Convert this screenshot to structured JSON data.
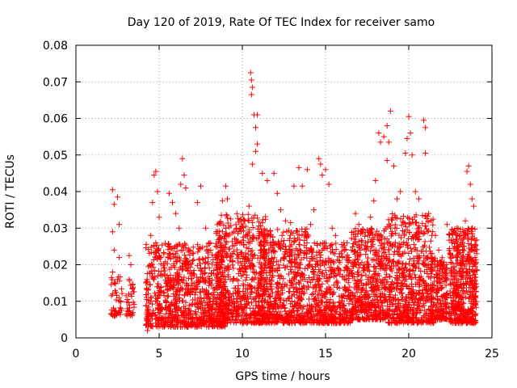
{
  "chart_data": {
    "type": "scatter",
    "title": "Day 120 of 2019, Rate Of TEC Index for receiver samo",
    "xlabel": "GPS time / hours",
    "ylabel": "ROTI / TECUs",
    "xlim": [
      0,
      25
    ],
    "ylim": [
      0,
      0.08
    ],
    "x_ticks": [
      0,
      5,
      10,
      15,
      20,
      25
    ],
    "x_tick_labels": [
      "0",
      "5",
      "10",
      "15",
      "20",
      "25"
    ],
    "y_ticks": [
      0,
      0.01,
      0.02,
      0.03,
      0.04,
      0.05,
      0.06,
      0.07,
      0.08
    ],
    "y_tick_labels": [
      "0",
      "0.01",
      "0.02",
      "0.03",
      "0.04",
      "0.05",
      "0.06",
      "0.07",
      "0.08"
    ],
    "grid": true,
    "marker": "+",
    "color": "#ff0000",
    "series": [
      {
        "name": "ROTI",
        "points": [
          [
            2.2,
            0.0405
          ],
          [
            2.3,
            0.0365
          ],
          [
            2.2,
            0.029
          ],
          [
            2.3,
            0.024
          ],
          [
            2.2,
            0.018
          ],
          [
            2.3,
            0.015
          ],
          [
            2.2,
            0.012
          ],
          [
            2.4,
            0.0075
          ],
          [
            2.5,
            0.0385
          ],
          [
            2.6,
            0.031
          ],
          [
            2.6,
            0.022
          ],
          [
            2.5,
            0.016
          ],
          [
            2.6,
            0.011
          ],
          [
            2.7,
            0.008
          ],
          [
            3.2,
            0.0225
          ],
          [
            3.3,
            0.02
          ],
          [
            3.2,
            0.016
          ],
          [
            3.3,
            0.012
          ],
          [
            3.2,
            0.009
          ],
          [
            3.3,
            0.0065
          ],
          [
            3.4,
            0.0145
          ],
          [
            3.1,
            0.0105
          ],
          [
            4.3,
            0.002
          ],
          [
            4.4,
            0.006
          ],
          [
            4.6,
            0.037
          ],
          [
            4.7,
            0.0445
          ],
          [
            4.8,
            0.0455
          ],
          [
            4.9,
            0.04
          ],
          [
            5.0,
            0.033
          ],
          [
            4.5,
            0.028
          ],
          [
            4.8,
            0.026
          ],
          [
            5.1,
            0.022
          ],
          [
            5.6,
            0.0395
          ],
          [
            5.8,
            0.037
          ],
          [
            6.0,
            0.034
          ],
          [
            6.3,
            0.042
          ],
          [
            6.4,
            0.049
          ],
          [
            6.5,
            0.0445
          ],
          [
            6.6,
            0.041
          ],
          [
            6.2,
            0.03
          ],
          [
            7.0,
            0.0035
          ],
          [
            7.3,
            0.037
          ],
          [
            7.5,
            0.0415
          ],
          [
            7.8,
            0.03
          ],
          [
            8.1,
            0.024
          ],
          [
            8.4,
            0.022
          ],
          [
            8.6,
            0.028
          ],
          [
            8.8,
            0.0375
          ],
          [
            9.0,
            0.0415
          ],
          [
            9.1,
            0.038
          ],
          [
            9.3,
            0.0325
          ],
          [
            9.5,
            0.029
          ],
          [
            9.7,
            0.026
          ],
          [
            9.9,
            0.03
          ],
          [
            10.2,
            0.0305
          ],
          [
            10.4,
            0.036
          ],
          [
            10.5,
            0.0725
          ],
          [
            10.55,
            0.0705
          ],
          [
            10.6,
            0.0685
          ],
          [
            10.55,
            0.0665
          ],
          [
            10.7,
            0.061
          ],
          [
            10.9,
            0.061
          ],
          [
            10.8,
            0.0575
          ],
          [
            10.9,
            0.053
          ],
          [
            10.8,
            0.051
          ],
          [
            10.6,
            0.0475
          ],
          [
            11.2,
            0.045
          ],
          [
            11.5,
            0.043
          ],
          [
            11.9,
            0.045
          ],
          [
            12.1,
            0.0395
          ],
          [
            12.3,
            0.035
          ],
          [
            12.6,
            0.032
          ],
          [
            12.9,
            0.0315
          ],
          [
            13.1,
            0.0415
          ],
          [
            13.4,
            0.0465
          ],
          [
            13.6,
            0.0415
          ],
          [
            13.9,
            0.046
          ],
          [
            14.1,
            0.031
          ],
          [
            14.3,
            0.035
          ],
          [
            14.6,
            0.049
          ],
          [
            14.7,
            0.0475
          ],
          [
            14.8,
            0.0445
          ],
          [
            15.0,
            0.046
          ],
          [
            15.2,
            0.042
          ],
          [
            15.4,
            0.03
          ],
          [
            15.6,
            0.028
          ],
          [
            16.1,
            0.026
          ],
          [
            16.4,
            0.022
          ],
          [
            16.8,
            0.034
          ],
          [
            17.0,
            0.031
          ],
          [
            17.4,
            0.026
          ],
          [
            17.7,
            0.033
          ],
          [
            17.9,
            0.0375
          ],
          [
            18.0,
            0.043
          ],
          [
            18.2,
            0.056
          ],
          [
            18.3,
            0.0535
          ],
          [
            18.5,
            0.055
          ],
          [
            18.7,
            0.058
          ],
          [
            18.8,
            0.0535
          ],
          [
            18.9,
            0.062
          ],
          [
            18.7,
            0.0485
          ],
          [
            19.1,
            0.047
          ],
          [
            19.3,
            0.038
          ],
          [
            19.5,
            0.04
          ],
          [
            19.8,
            0.0505
          ],
          [
            19.9,
            0.0545
          ],
          [
            20.0,
            0.0605
          ],
          [
            20.1,
            0.056
          ],
          [
            20.2,
            0.05
          ],
          [
            20.4,
            0.04
          ],
          [
            20.6,
            0.038
          ],
          [
            20.9,
            0.0595
          ],
          [
            21.0,
            0.0575
          ],
          [
            21.0,
            0.0505
          ],
          [
            21.2,
            0.034
          ],
          [
            21.4,
            0.023
          ],
          [
            21.6,
            0.028
          ],
          [
            21.8,
            0.024
          ],
          [
            22.0,
            0.018
          ],
          [
            22.3,
            0.031
          ],
          [
            22.6,
            0.026
          ],
          [
            22.9,
            0.03
          ],
          [
            23.1,
            0.028
          ],
          [
            23.4,
            0.032
          ],
          [
            23.5,
            0.0455
          ],
          [
            23.6,
            0.047
          ],
          [
            23.7,
            0.042
          ],
          [
            23.8,
            0.038
          ],
          [
            23.9,
            0.036
          ],
          [
            23.8,
            0.03
          ],
          [
            23.6,
            0.0075
          ],
          [
            23.9,
            0.004
          ],
          [
            24.0,
            0.0065
          ]
        ],
        "bands": [
          {
            "x_range": [
              2.1,
              2.8
            ],
            "y_range": [
              0.006,
              0.017
            ],
            "count": 40
          },
          {
            "x_range": [
              3.0,
              3.5
            ],
            "y_range": [
              0.006,
              0.016
            ],
            "count": 30
          },
          {
            "x_range": [
              4.2,
              9.0
            ],
            "y_range": [
              0.003,
              0.026
            ],
            "count": 900
          },
          {
            "x_range": [
              8.4,
              11.4
            ],
            "y_range": [
              0.004,
              0.034
            ],
            "count": 600
          },
          {
            "x_range": [
              11.0,
              14.0
            ],
            "y_range": [
              0.004,
              0.03
            ],
            "count": 600
          },
          {
            "x_range": [
              14.0,
              16.5
            ],
            "y_range": [
              0.004,
              0.026
            ],
            "count": 450
          },
          {
            "x_range": [
              16.5,
              18.5
            ],
            "y_range": [
              0.005,
              0.03
            ],
            "count": 450
          },
          {
            "x_range": [
              18.5,
              21.5
            ],
            "y_range": [
              0.004,
              0.034
            ],
            "count": 650
          },
          {
            "x_range": [
              21.3,
              22.3
            ],
            "y_range": [
              0.005,
              0.022
            ],
            "count": 200
          },
          {
            "x_range": [
              22.4,
              24.1
            ],
            "y_range": [
              0.004,
              0.03
            ],
            "count": 500
          }
        ]
      }
    ]
  }
}
